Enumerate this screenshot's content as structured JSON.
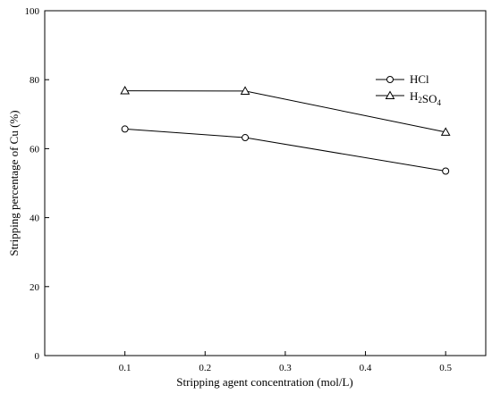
{
  "chart_data": {
    "type": "line",
    "x": [
      0.1,
      0.25,
      0.5
    ],
    "series": [
      {
        "name": "HCl",
        "marker": "circle",
        "values": [
          65.7,
          63.2,
          53.5
        ]
      },
      {
        "name": "H2SO4",
        "marker": "triangle",
        "values": [
          76.8,
          76.7,
          64.8
        ]
      }
    ],
    "title": "",
    "xlabel": "Stripping agent concentration (mol/L)",
    "ylabel": "Stripping percentage of Cu (%)",
    "xlim": [
      0.0,
      0.55
    ],
    "ylim": [
      0,
      100
    ],
    "xticks": [
      "0.1",
      "0.2",
      "0.3",
      "0.4",
      "0.5"
    ],
    "yticks": [
      "0",
      "20",
      "40",
      "60",
      "80",
      "100"
    ],
    "grid": false,
    "legend_position": "top-right",
    "line_color": "#000000"
  }
}
